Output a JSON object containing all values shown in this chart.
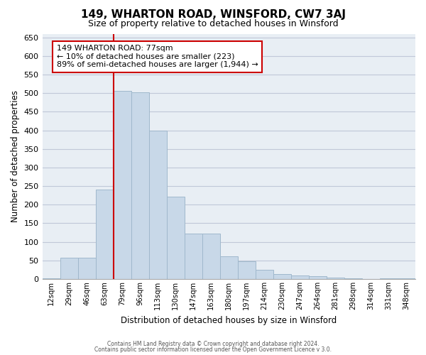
{
  "title": "149, WHARTON ROAD, WINSFORD, CW7 3AJ",
  "subtitle": "Size of property relative to detached houses in Winsford",
  "xlabel": "Distribution of detached houses by size in Winsford",
  "ylabel": "Number of detached properties",
  "bar_labels": [
    "12sqm",
    "29sqm",
    "46sqm",
    "63sqm",
    "79sqm",
    "96sqm",
    "113sqm",
    "130sqm",
    "147sqm",
    "163sqm",
    "180sqm",
    "197sqm",
    "214sqm",
    "230sqm",
    "247sqm",
    "264sqm",
    "281sqm",
    "298sqm",
    "314sqm",
    "331sqm",
    "348sqm"
  ],
  "bar_values": [
    2,
    57,
    57,
    240,
    507,
    502,
    400,
    222,
    122,
    122,
    62,
    47,
    25,
    13,
    10,
    8,
    3,
    2,
    0,
    2,
    2
  ],
  "bar_color": "#c8d8e8",
  "bar_edge_color": "#a0b8cc",
  "vline_x_index": 4,
  "vline_color": "#cc0000",
  "ylim": [
    0,
    660
  ],
  "yticks": [
    0,
    50,
    100,
    150,
    200,
    250,
    300,
    350,
    400,
    450,
    500,
    550,
    600,
    650
  ],
  "annotation_title": "149 WHARTON ROAD: 77sqm",
  "annotation_line1": "← 10% of detached houses are smaller (223)",
  "annotation_line2": "89% of semi-detached houses are larger (1,944) →",
  "annotation_box_color": "#ffffff",
  "annotation_box_edge": "#cc0000",
  "footer1": "Contains HM Land Registry data © Crown copyright and database right 2024.",
  "footer2": "Contains public sector information licensed under the Open Government Licence v 3.0.",
  "grid_color": "#c0c8d8",
  "bg_color": "#e8eef4"
}
